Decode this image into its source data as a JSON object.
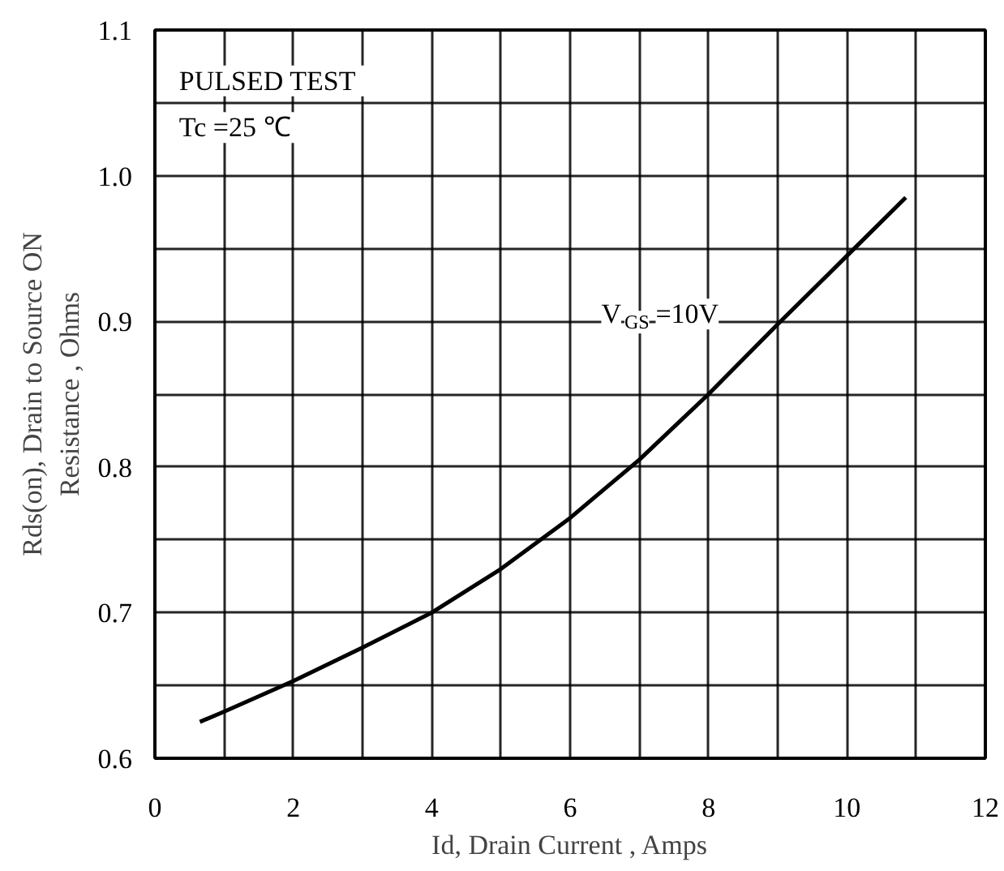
{
  "chart_data": {
    "type": "line",
    "xlabel": "Id, Drain Current , Amps",
    "ylabel": "Rds(on), Drain to Source ON\nResistance , Ohms",
    "annotations": [
      "PULSED    TEST",
      "Tc =25  ℃",
      "V$_{GS}$=10V"
    ],
    "x": [
      0.65,
      1,
      2,
      3,
      4,
      5,
      6,
      7,
      8,
      9,
      10,
      10.85
    ],
    "series": [
      {
        "color": "#000000",
        "values": [
          0.625,
          0.632,
          0.653,
          0.676,
          0.7,
          0.73,
          0.765,
          0.805,
          0.85,
          0.898,
          0.945,
          0.985
        ]
      }
    ],
    "xlim": [
      0,
      12
    ],
    "ylim": [
      0.6,
      1.1
    ],
    "xticks": [
      0,
      {
        "value": 1,
        "label": null
      },
      2,
      {
        "value": 3,
        "label": null
      },
      4,
      {
        "value": 5,
        "label": null
      },
      6,
      {
        "value": 7,
        "label": null
      },
      8,
      {
        "value": 9,
        "label": null
      },
      10,
      {
        "value": 11,
        "label": null
      },
      12
    ],
    "yticks": [
      {
        "value": 0.6,
        "label": "0.6"
      },
      {
        "value": 0.65,
        "label": null
      },
      {
        "value": 0.7,
        "label": "0.7"
      },
      {
        "value": 0.75,
        "label": null
      },
      {
        "value": 0.8,
        "label": "0.8"
      },
      {
        "value": 0.85,
        "label": null
      },
      {
        "value": 0.9,
        "label": "0.9"
      },
      {
        "value": 0.95,
        "label": null
      },
      {
        "value": 1.0,
        "label": "1.0"
      },
      {
        "value": 1.05,
        "label": null
      },
      {
        "value": 1.1,
        "label": "1.1"
      }
    ],
    "grid": true,
    "marker": "none",
    "line_style": "solid"
  }
}
